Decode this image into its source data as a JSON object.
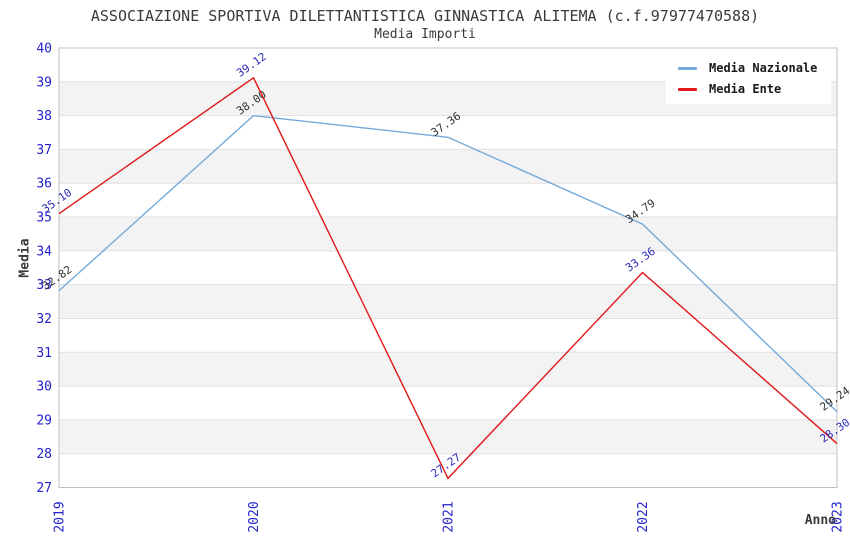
{
  "chart_data": {
    "type": "line",
    "title": "ASSOCIAZIONE SPORTIVA DILETTANTISTICA GINNASTICA ALITEMA (c.f.97977470588)",
    "subtitle": "Media Importi",
    "xlabel": "Anno",
    "ylabel": "Media",
    "categories": [
      "2019",
      "2020",
      "2021",
      "2022",
      "2023"
    ],
    "series": [
      {
        "name": "Media Nazionale",
        "color": "#74AADC",
        "label_color": "#303030",
        "values": [
          32.82,
          38.0,
          37.36,
          34.79,
          29.24
        ],
        "point_labels": [
          "32.82",
          "38.00",
          "37.36",
          "34.79",
          "29.24"
        ]
      },
      {
        "name": "Media Ente",
        "color": "#E01818",
        "label_color": "#2A2AB8",
        "values": [
          35.1,
          39.12,
          27.27,
          33.36,
          28.3
        ],
        "point_labels": [
          "35.10",
          "39.12",
          "27.27",
          "33.36",
          "28.30"
        ]
      }
    ],
    "ylim": [
      27,
      40
    ],
    "ytick_step": 1,
    "grid": "horizontal-bands",
    "legend_position": "top-right",
    "tick_label_color": "#2222CC",
    "band_color": "#F3F3F3",
    "gridline_color": "#E2E2E2",
    "plot_border_color": "#C0C0C0"
  }
}
